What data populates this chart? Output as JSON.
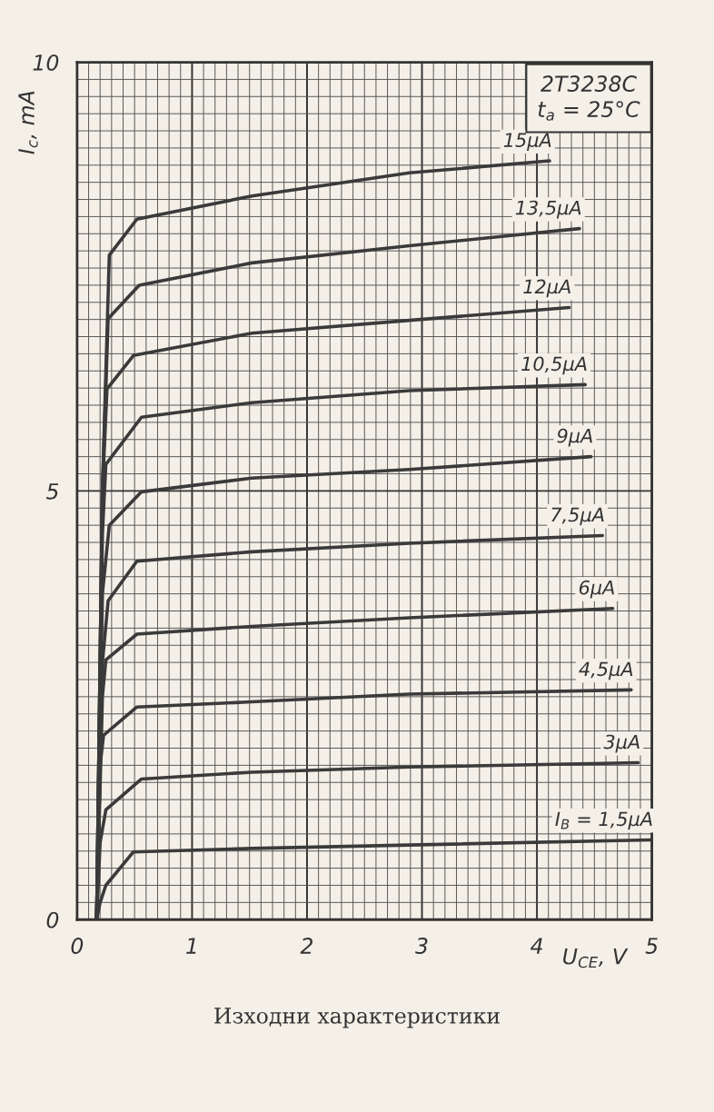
{
  "chart_data": {
    "type": "line",
    "xlabel": "U$_{CE}$, V",
    "ylabel": "I$_{c}$, mA",
    "xlim": [
      0,
      5
    ],
    "ylim": [
      0,
      10
    ],
    "xticks": [
      0,
      1,
      2,
      3,
      4,
      {
        "value": 5,
        "label": "5"
      }
    ],
    "yticks": [
      0,
      5,
      10
    ],
    "grid": true,
    "marker": "none",
    "line_style": "solid",
    "legend": false,
    "annotations": [
      "2T3238C\nt$_{a}$ = 25°C",
      "Изходни характеристики"
    ],
    "series": [
      {
        "name": "15μA",
        "color": "#3a3a3a",
        "x": [
          0.17,
          0.22,
          0.28,
          0.52,
          1.52,
          2.89,
          4.11
        ],
        "values": [
          0,
          5.0,
          7.75,
          8.17,
          8.44,
          8.71,
          8.85
        ]
      },
      {
        "name": "13,5μA",
        "color": "#3a3a3a",
        "x": [
          0.17,
          0.22,
          0.27,
          0.54,
          1.52,
          2.89,
          4.37
        ],
        "values": [
          0,
          5.0,
          7.01,
          7.4,
          7.66,
          7.86,
          8.06
        ]
      },
      {
        "name": "12μA",
        "color": "#3a3a3a",
        "x": [
          0.17,
          0.22,
          0.26,
          0.49,
          1.52,
          2.89,
          4.28
        ],
        "values": [
          0,
          5.0,
          6.19,
          6.58,
          6.84,
          6.99,
          7.14
        ]
      },
      {
        "name": "10,5μA",
        "color": "#3a3a3a",
        "x": [
          0.17,
          0.22,
          0.25,
          0.56,
          1.52,
          2.89,
          4.42
        ],
        "values": [
          0,
          4.5,
          5.31,
          5.86,
          6.03,
          6.17,
          6.24
        ]
      },
      {
        "name": "9μA",
        "color": "#3a3a3a",
        "x": [
          0.17,
          0.22,
          0.28,
          0.56,
          1.52,
          2.89,
          4.47
        ],
        "values": [
          0,
          3.8,
          4.6,
          4.99,
          5.15,
          5.25,
          5.4
        ]
      },
      {
        "name": "7,5μA",
        "color": "#3a3a3a",
        "x": [
          0.17,
          0.22,
          0.27,
          0.52,
          1.52,
          2.89,
          4.57
        ],
        "values": [
          0,
          3.0,
          3.72,
          4.18,
          4.29,
          4.39,
          4.48
        ]
      },
      {
        "name": "6μA",
        "color": "#3a3a3a",
        "x": [
          0.17,
          0.22,
          0.25,
          0.52,
          1.52,
          2.89,
          4.66
        ],
        "values": [
          0,
          2.6,
          3.03,
          3.33,
          3.42,
          3.52,
          3.63
        ]
      },
      {
        "name": "4,5μA",
        "color": "#3a3a3a",
        "x": [
          0.17,
          0.2,
          0.23,
          0.52,
          1.52,
          2.89,
          4.82
        ],
        "values": [
          0,
          1.8,
          2.15,
          2.48,
          2.54,
          2.63,
          2.68
        ]
      },
      {
        "name": "3μA",
        "color": "#3a3a3a",
        "x": [
          0.17,
          0.2,
          0.25,
          0.56,
          1.52,
          2.89,
          4.88
        ],
        "values": [
          0,
          0.9,
          1.28,
          1.64,
          1.72,
          1.78,
          1.83
        ]
      },
      {
        "name": "I$_{B}$ = 1,5μA",
        "color": "#3a3a3a",
        "x": [
          0.17,
          0.2,
          0.25,
          0.49,
          1.52,
          2.89,
          4.99
        ],
        "values": [
          0,
          0.2,
          0.4,
          0.79,
          0.83,
          0.87,
          0.93
        ]
      }
    ]
  }
}
